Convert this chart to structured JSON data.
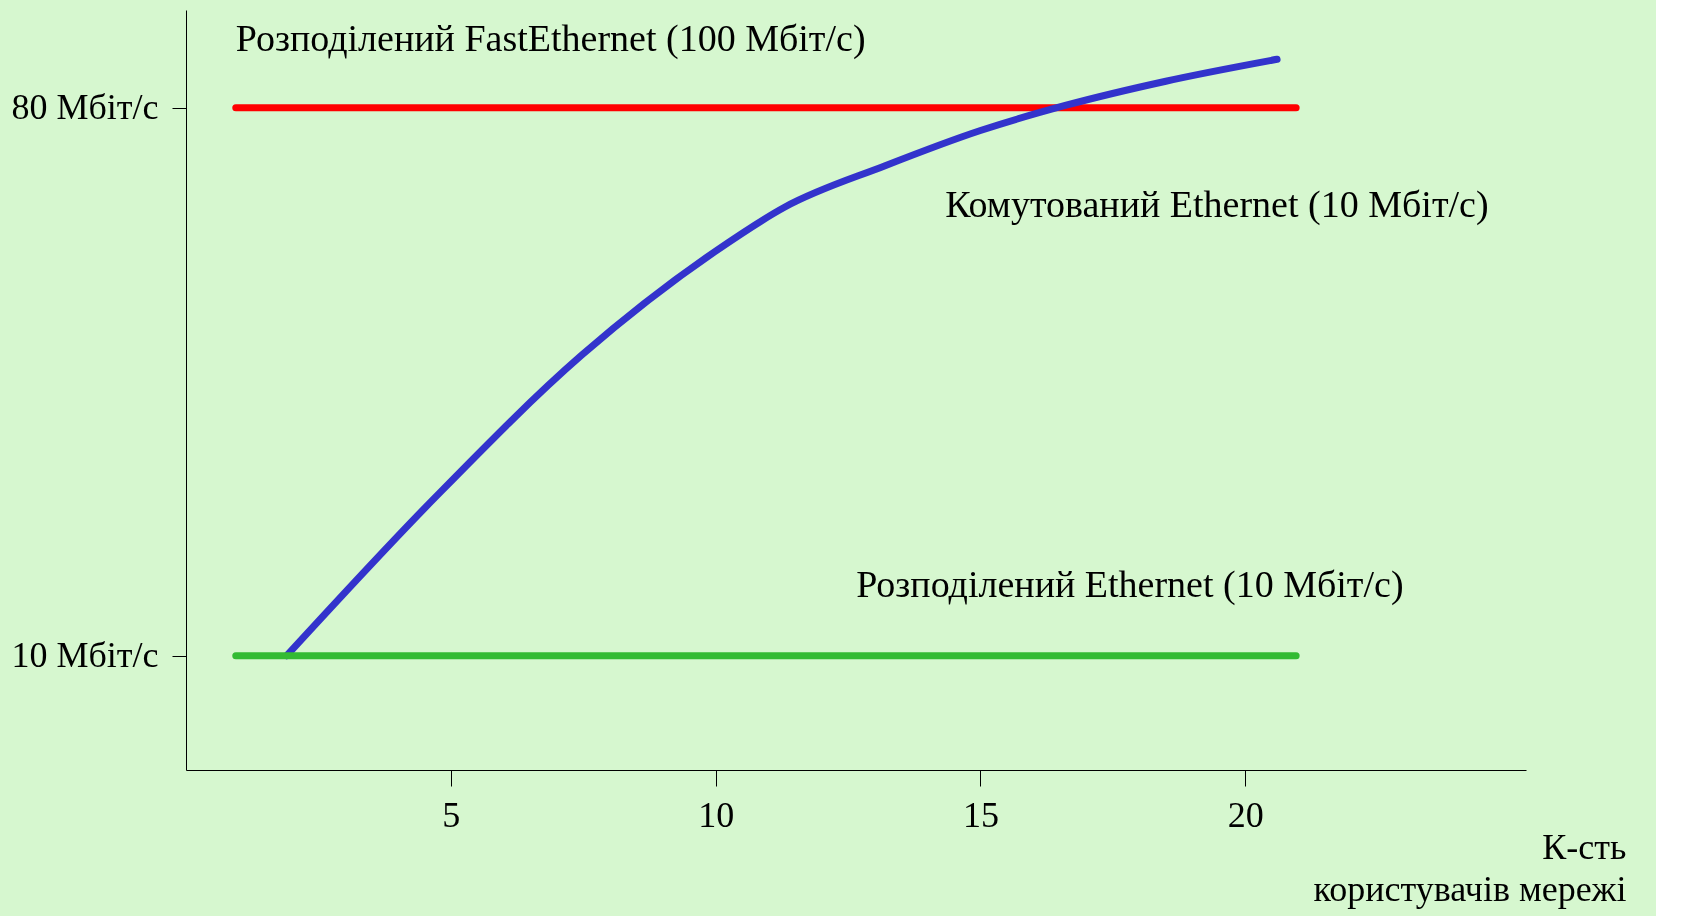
{
  "chart_data": {
    "type": "line",
    "xlabel": "К-сть\nкористувачів мережі",
    "series": [
      {
        "name": "Розподілений FastEthernet (100 Мбіт/с)",
        "color": "#ff0000",
        "x": [
          0.94,
          20.96
        ],
        "values": [
          80,
          80
        ]
      },
      {
        "name": "Комутований Ethernet (10 Мбіт/с)",
        "color": "#3333cc",
        "x": [
          1.9,
          4.7,
          7.47,
          10,
          11.3,
          13.2,
          15,
          16.6,
          18.5,
          20.6
        ],
        "values": [
          10,
          30.2,
          48.4,
          61.7,
          67.3,
          72.6,
          77.1,
          80.3,
          83.4,
          86.2
        ]
      },
      {
        "name": "Розподілений Ethernet (10 Мбіт/с)",
        "color": "#33bb33",
        "x": [
          0.94,
          20.96
        ],
        "values": [
          10,
          10
        ]
      }
    ],
    "xlim": [
      0,
      25.3
    ],
    "xticks": [
      5,
      10,
      15,
      20
    ],
    "ylim": [
      -4.6,
      92.5
    ],
    "yticks": [
      {
        "value": 80,
        "label": "80 Мбіт/с"
      },
      {
        "value": 10,
        "label": "10 Мбіт/с"
      }
    ],
    "grid": false,
    "legend": false,
    "line_style": "solid"
  }
}
